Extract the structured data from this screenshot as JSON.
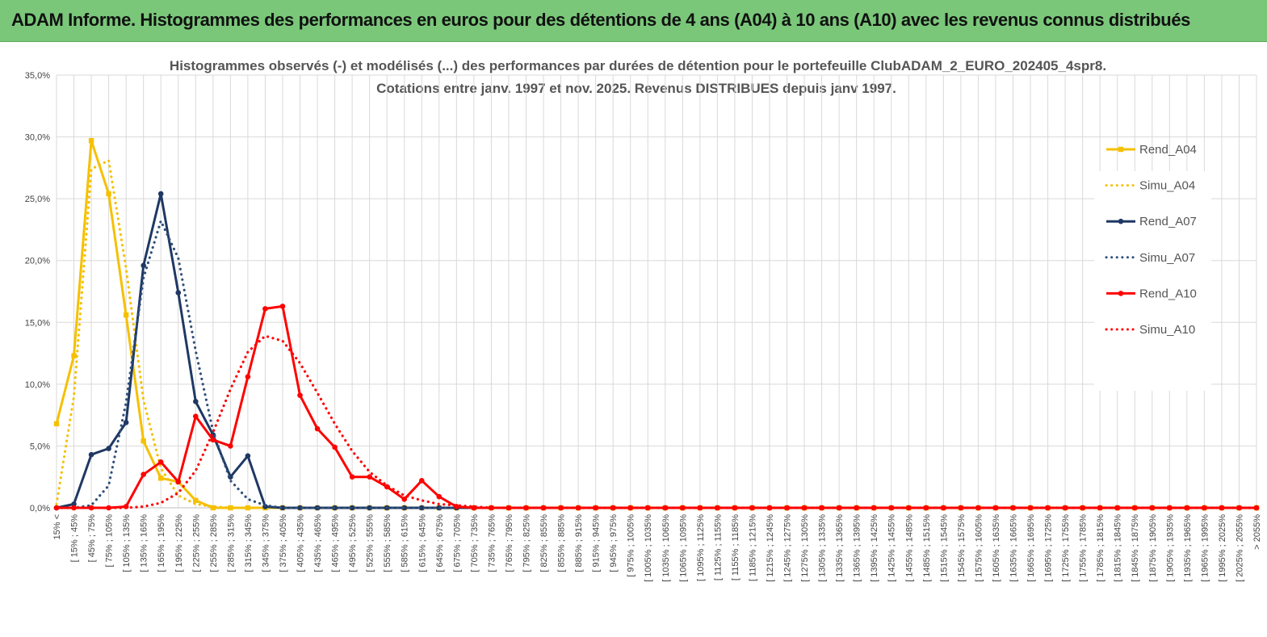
{
  "header": {
    "title": "ADAM Informe. Histogrammes des performances en euros pour des détentions de 4 ans (A04) à 10 ans (A10) avec les revenus connus distribués"
  },
  "chart_data": {
    "type": "line",
    "title": "Histogrammes observés (-) et modélisés (...) des performances par durées de détention pour  le portefeuille ClubADAM_2_EURO_202405_4spr8.",
    "subtitle": "Cotations entre janv. 1997 et nov. 2025. Revenus DISTRIBUES depuis janv 1997.",
    "xlabel": "",
    "ylabel": "",
    "ylim": [
      0,
      35
    ],
    "yticks": [
      "0,0%",
      "5,0%",
      "10,0%",
      "15,0%",
      "20,0%",
      "25,0%",
      "30,0%",
      "35,0%"
    ],
    "grid": true,
    "legend_position": "right",
    "categories": [
      "15% <",
      "[ 15% ; 45%",
      "[ 45% ; 75%",
      "[ 75% ; 105%",
      "[ 105% ; 135%",
      "[ 135% ; 165%",
      "[ 165% ; 195%",
      "[ 195% ; 225%",
      "[ 225% ; 255%",
      "[ 255% ; 285%",
      "[ 285% ; 315%",
      "[ 315% ; 345%",
      "[ 345% ; 375%",
      "[ 375% ; 405%",
      "[ 405% ; 435%",
      "[ 435% ; 465%",
      "[ 465% ; 495%",
      "[ 495% ; 525%",
      "[ 525% ; 555%",
      "[ 555% ; 585%",
      "[ 585% ; 615%",
      "[ 615% ; 645%",
      "[ 645% ; 675%",
      "[ 675% ; 705%",
      "[ 705% ; 735%",
      "[ 735% ; 765%",
      "[ 765% ; 795%",
      "[ 795% ; 825%",
      "[ 825% ; 855%",
      "[ 855% ; 885%",
      "[ 885% ; 915%",
      "[ 915% ; 945%",
      "[ 945% ; 975%",
      "[ 975% ; 1005%",
      "[ 1005% ; 1035%",
      "[ 1035% ; 1065%",
      "[ 1065% ; 1095%",
      "[ 1095% ; 1125%",
      "[ 1125% ; 1155%",
      "[ 1155% ; 1185%",
      "[ 1185% ; 1215%",
      "[ 1215% ; 1245%",
      "[ 1245% ; 1275%",
      "[ 1275% ; 1305%",
      "[ 1305% ; 1335%",
      "[ 1335% ; 1365%",
      "[ 1365% ; 1395%",
      "[ 1395% ; 1425%",
      "[ 1425% ; 1455%",
      "[ 1455% ; 1485%",
      "[ 1485% ; 1515%",
      "[ 1515% ; 1545%",
      "[ 1545% ; 1575%",
      "[ 1575% ; 1605%",
      "[ 1605% ; 1635%",
      "[ 1635% ; 1665%",
      "[ 1665% ; 1695%",
      "[ 1695% ; 1725%",
      "[ 1725% ; 1755%",
      "[ 1755% ; 1785%",
      "[ 1785% ; 1815%",
      "[ 1815% ; 1845%",
      "[ 1845% ; 1875%",
      "[ 1875% ; 1905%",
      "[ 1905% ; 1935%",
      "[ 1935% ; 1965%",
      "[ 1965% ; 1995%",
      "[ 1995% ; 2025%",
      "[ 2025% ; 2055%",
      "> 2055%"
    ],
    "series": [
      {
        "name": "Rend_A04",
        "color": "#f5c000",
        "style": "solid",
        "marker": "square",
        "values": [
          6.8,
          12.3,
          29.7,
          25.4,
          15.6,
          5.4,
          2.4,
          2.1,
          0.6,
          0.0,
          0.0,
          0.0,
          0.0,
          0.0,
          0.0,
          0.0,
          0.0,
          0.0,
          0.0,
          0.0,
          0.0,
          0.0,
          0.0,
          0.0,
          0.0,
          0.0,
          0.0,
          0.0,
          0.0,
          0.0,
          0.0,
          0.0,
          0.0,
          0.0,
          0.0,
          0.0,
          0.0,
          0.0,
          0.0,
          0.0,
          0.0,
          0.0,
          0.0,
          0.0,
          0.0,
          0.0,
          0.0,
          0.0,
          0.0,
          0.0,
          0.0,
          0.0,
          0.0,
          0.0,
          0.0,
          0.0,
          0.0,
          0.0,
          0.0,
          0.0,
          0.0,
          0.0,
          0.0,
          0.0,
          0.0,
          0.0,
          0.0,
          0.0,
          0.0,
          0.0
        ]
      },
      {
        "name": "Simu_A04",
        "color": "#f5c000",
        "style": "dotted",
        "marker": "none",
        "values": [
          0.3,
          9.0,
          27.4,
          28.1,
          19.4,
          8.7,
          3.2,
          1.0,
          0.3,
          0.1,
          0.0,
          0.0,
          0.0,
          0.0,
          0.0,
          0.0,
          0.0,
          0.0,
          0.0,
          0.0,
          0.0,
          0.0,
          0.0,
          0.0,
          0.0,
          0.0,
          0.0,
          0.0,
          0.0,
          0.0,
          0.0,
          0.0,
          0.0,
          0.0,
          0.0,
          0.0,
          0.0,
          0.0,
          0.0,
          0.0,
          0.0,
          0.0,
          0.0,
          0.0,
          0.0,
          0.0,
          0.0,
          0.0,
          0.0,
          0.0,
          0.0,
          0.0,
          0.0,
          0.0,
          0.0,
          0.0,
          0.0,
          0.0,
          0.0,
          0.0,
          0.0,
          0.0,
          0.0,
          0.0,
          0.0,
          0.0,
          0.0,
          0.0,
          0.0,
          0.0
        ]
      },
      {
        "name": "Rend_A07",
        "color": "#1f3864",
        "style": "solid",
        "marker": "circle",
        "values": [
          0.0,
          0.3,
          4.3,
          4.8,
          6.9,
          19.6,
          25.4,
          17.4,
          8.6,
          5.9,
          2.5,
          4.2,
          0.1,
          0.0,
          0.0,
          0.0,
          0.0,
          0.0,
          0.0,
          0.0,
          0.0,
          0.0,
          0.0,
          0.0,
          0.0,
          0.0,
          0.0,
          0.0,
          0.0,
          0.0,
          0.0,
          0.0,
          0.0,
          0.0,
          0.0,
          0.0,
          0.0,
          0.0,
          0.0,
          0.0,
          0.0,
          0.0,
          0.0,
          0.0,
          0.0,
          0.0,
          0.0,
          0.0,
          0.0,
          0.0,
          0.0,
          0.0,
          0.0,
          0.0,
          0.0,
          0.0,
          0.0,
          0.0,
          0.0,
          0.0,
          0.0,
          0.0,
          0.0,
          0.0,
          0.0,
          0.0,
          0.0,
          0.0,
          0.0,
          0.0
        ]
      },
      {
        "name": "Simu_A07",
        "color": "#2e4f7a",
        "style": "dotted",
        "marker": "none",
        "values": [
          0.0,
          0.0,
          0.2,
          1.8,
          8.5,
          18.6,
          23.2,
          20.2,
          12.7,
          6.2,
          2.2,
          0.7,
          0.2,
          0.0,
          0.0,
          0.0,
          0.0,
          0.0,
          0.0,
          0.0,
          0.0,
          0.0,
          0.0,
          0.0,
          0.0,
          0.0,
          0.0,
          0.0,
          0.0,
          0.0,
          0.0,
          0.0,
          0.0,
          0.0,
          0.0,
          0.0,
          0.0,
          0.0,
          0.0,
          0.0,
          0.0,
          0.0,
          0.0,
          0.0,
          0.0,
          0.0,
          0.0,
          0.0,
          0.0,
          0.0,
          0.0,
          0.0,
          0.0,
          0.0,
          0.0,
          0.0,
          0.0,
          0.0,
          0.0,
          0.0,
          0.0,
          0.0,
          0.0,
          0.0,
          0.0,
          0.0,
          0.0,
          0.0,
          0.0,
          0.0
        ]
      },
      {
        "name": "Rend_A10",
        "color": "#ff0000",
        "style": "solid",
        "marker": "circle",
        "values": [
          0.0,
          0.0,
          0.0,
          0.0,
          0.1,
          2.7,
          3.7,
          2.1,
          7.4,
          5.5,
          5.0,
          10.6,
          16.1,
          16.3,
          9.1,
          6.4,
          4.9,
          2.5,
          2.5,
          1.7,
          0.7,
          2.2,
          0.9,
          0.1,
          0.0,
          0.0,
          0.0,
          0.0,
          0.0,
          0.0,
          0.0,
          0.0,
          0.0,
          0.0,
          0.0,
          0.0,
          0.0,
          0.0,
          0.0,
          0.0,
          0.0,
          0.0,
          0.0,
          0.0,
          0.0,
          0.0,
          0.0,
          0.0,
          0.0,
          0.0,
          0.0,
          0.0,
          0.0,
          0.0,
          0.0,
          0.0,
          0.0,
          0.0,
          0.0,
          0.0,
          0.0,
          0.0,
          0.0,
          0.0,
          0.0,
          0.0,
          0.0,
          0.0,
          0.0,
          0.0
        ]
      },
      {
        "name": "Simu_A10",
        "color": "#ff0000",
        "style": "dotted",
        "marker": "none",
        "values": [
          0.0,
          0.0,
          0.0,
          0.0,
          0.0,
          0.1,
          0.4,
          1.2,
          3.0,
          6.1,
          9.6,
          12.6,
          13.9,
          13.5,
          11.7,
          9.3,
          6.8,
          4.6,
          2.9,
          1.8,
          1.0,
          0.6,
          0.3,
          0.2,
          0.1,
          0.0,
          0.0,
          0.0,
          0.0,
          0.0,
          0.0,
          0.0,
          0.0,
          0.0,
          0.0,
          0.0,
          0.0,
          0.0,
          0.0,
          0.0,
          0.0,
          0.0,
          0.0,
          0.0,
          0.0,
          0.0,
          0.0,
          0.0,
          0.0,
          0.0,
          0.0,
          0.0,
          0.0,
          0.0,
          0.0,
          0.0,
          0.0,
          0.0,
          0.0,
          0.0,
          0.0,
          0.0,
          0.0,
          0.0,
          0.0,
          0.0,
          0.0,
          0.0,
          0.0,
          0.0
        ]
      }
    ]
  }
}
